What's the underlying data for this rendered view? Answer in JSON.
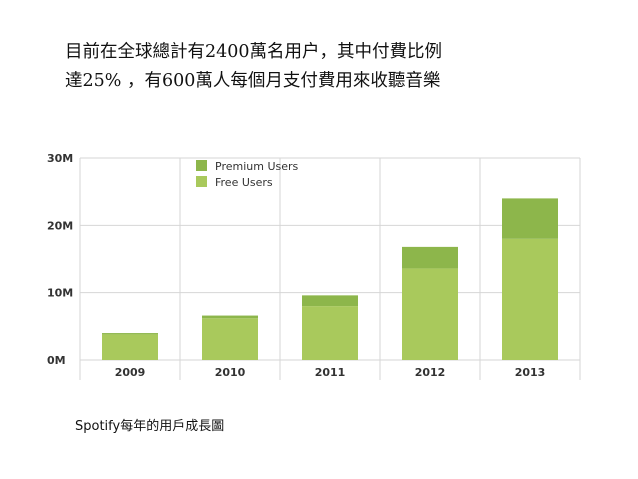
{
  "headline": {
    "line1": "目前在全球總計有2400萬名用户，其中付費比例",
    "line2": "達25% ，有600萬人每個月支付費用來收聽音樂"
  },
  "caption": "Spotify每年的用戶成長圖",
  "colors": {
    "premium": "#8db64b",
    "free": "#a9c95c",
    "grid": "#d6d6d6",
    "axis_text": "#333333"
  },
  "chart_data": {
    "type": "bar",
    "stacked": true,
    "categories": [
      "2009",
      "2010",
      "2011",
      "2012",
      "2013"
    ],
    "series": [
      {
        "name": "Free Users",
        "values": [
          3.8,
          6.2,
          8.0,
          13.6,
          18.0
        ]
      },
      {
        "name": "Premium Users",
        "values": [
          0.2,
          0.4,
          1.6,
          3.2,
          6.0
        ]
      }
    ],
    "yticks": [
      "0M",
      "10M",
      "20M",
      "30M"
    ],
    "ylim": [
      0,
      30
    ],
    "legend": [
      "Premium Users",
      "Free Users"
    ],
    "legend_position": "top-left",
    "grid": true
  }
}
